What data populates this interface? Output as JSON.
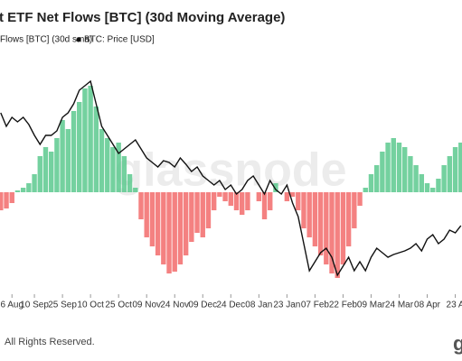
{
  "chart_data": {
    "type": "bar-line",
    "title": "t ETF Net Flows [BTC] (30d Moving Average)",
    "footer": "All Rights Reserved.",
    "watermark": "glassnode",
    "logo": "g",
    "x": [
      -18,
      -15,
      -12,
      -9,
      -6,
      -3,
      0,
      3,
      6,
      9,
      12,
      15,
      18,
      21,
      24,
      27,
      30,
      33,
      36,
      39,
      42,
      45,
      48,
      51,
      54,
      57,
      60,
      63,
      66,
      69,
      72,
      75,
      78,
      81,
      84,
      87,
      90,
      93,
      96,
      99,
      102,
      105,
      108,
      111,
      114,
      117,
      120,
      123,
      126,
      129,
      132,
      135,
      138,
      141,
      144,
      147,
      150,
      153,
      156,
      159,
      162,
      165,
      168,
      171,
      174,
      177,
      180,
      183,
      186,
      189,
      192,
      195,
      198,
      201,
      204,
      207,
      210,
      213,
      216,
      219,
      222,
      225,
      228
    ],
    "xlim": [
      -18.4,
      228.6
    ],
    "xticks": [
      {
        "value": -12,
        "label": "6 Aug"
      },
      {
        "value": 0,
        "label": "10 Sep"
      },
      {
        "value": 15,
        "label": "25 Sep"
      },
      {
        "value": 30,
        "label": "10 Oct"
      },
      {
        "value": 45,
        "label": "25 Oct"
      },
      {
        "value": 60,
        "label": "09 Nov"
      },
      {
        "value": 75,
        "label": "24 Nov"
      },
      {
        "value": 90,
        "label": "09 Dec"
      },
      {
        "value": 105,
        "label": "24 Dec"
      },
      {
        "value": 120,
        "label": "08 Jan"
      },
      {
        "value": 135,
        "label": "23 Jan"
      },
      {
        "value": 150,
        "label": "07 Feb"
      },
      {
        "value": 165,
        "label": "22 Feb"
      },
      {
        "value": 180,
        "label": "09 Mar"
      },
      {
        "value": 195,
        "label": "24 Mar"
      },
      {
        "value": 210,
        "label": "08 Apr"
      },
      {
        "value": 225,
        "label": "23 A"
      }
    ],
    "ylim": [
      -130,
      130
    ],
    "y2lim": [
      0,
      260
    ],
    "series": [
      {
        "name": "Flows [BTC] (30d sma)",
        "type": "bar",
        "color": "#5cc98e",
        "negative_color": "#f26b6b",
        "values": [
          -20,
          -18,
          -12,
          2,
          5,
          10,
          20,
          40,
          50,
          45,
          60,
          80,
          70,
          90,
          100,
          115,
          118,
          95,
          70,
          60,
          50,
          55,
          40,
          20,
          5,
          -30,
          -50,
          -60,
          -70,
          -80,
          -90,
          -88,
          -80,
          -70,
          -55,
          -45,
          -50,
          -40,
          -20,
          -5,
          -10,
          -15,
          -20,
          -25,
          -20,
          0,
          -10,
          -30,
          -20,
          10,
          0,
          -10,
          -5,
          -20,
          -40,
          -50,
          -60,
          -70,
          -80,
          -90,
          -95,
          -80,
          -60,
          -40,
          -15,
          5,
          20,
          30,
          45,
          55,
          60,
          55,
          50,
          40,
          30,
          20,
          10,
          5,
          15,
          30,
          40,
          50,
          55
        ]
      },
      {
        "name": "BTC: Price [USD]",
        "type": "line",
        "color": "#111111",
        "axis": "y2",
        "values": [
          218,
          203,
          213,
          208,
          213,
          205,
          193,
          183,
          193,
          193,
          198,
          213,
          218,
          228,
          243,
          248,
          253,
          228,
          203,
          193,
          183,
          173,
          178,
          183,
          188,
          178,
          168,
          163,
          158,
          165,
          163,
          158,
          168,
          161,
          153,
          158,
          148,
          143,
          138,
          143,
          133,
          138,
          128,
          133,
          143,
          148,
          138,
          128,
          143,
          133,
          128,
          138,
          118,
          103,
          73,
          43,
          53,
          63,
          68,
          58,
          38,
          48,
          58,
          43,
          53,
          43,
          58,
          68,
          63,
          58,
          61,
          63,
          65,
          68,
          73,
          65,
          78,
          83,
          73,
          78,
          88,
          85,
          93
        ]
      }
    ]
  }
}
